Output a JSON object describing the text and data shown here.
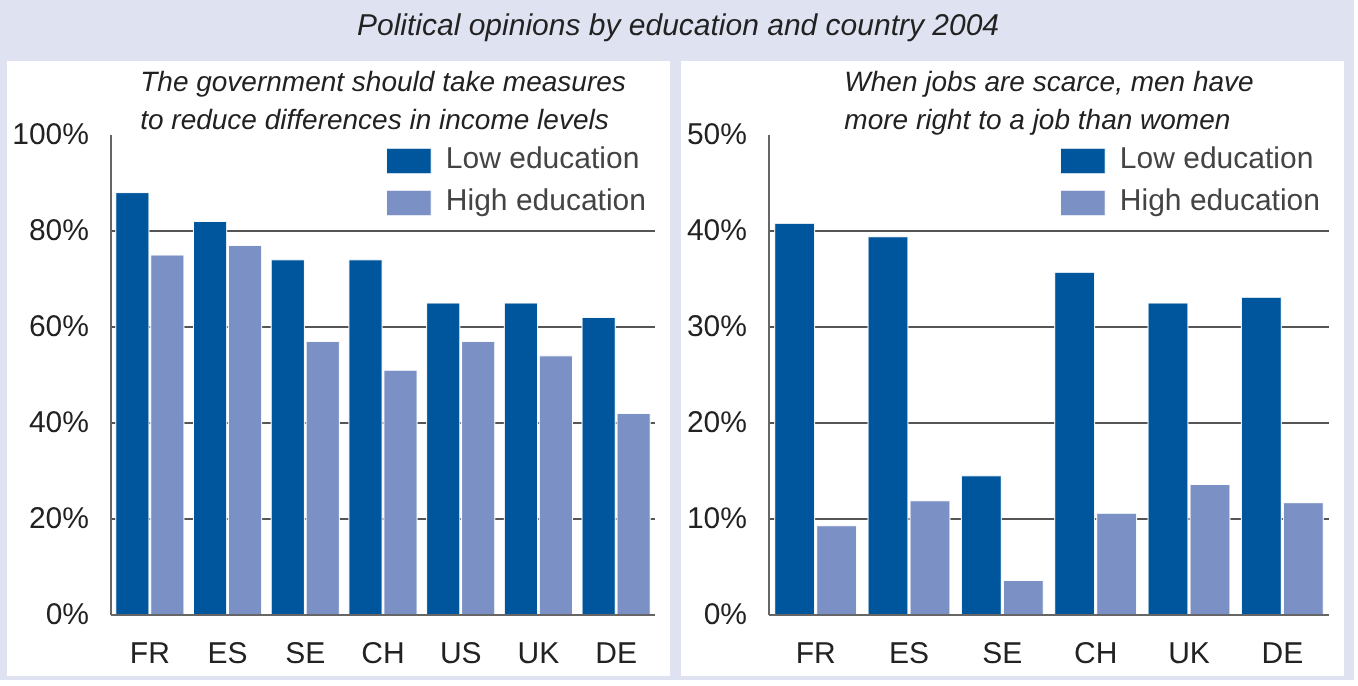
{
  "chart_data": [
    {
      "type": "other",
      "title": "Political opinions by education and country 2004"
    },
    {
      "type": "bar",
      "title": "The government should take measures to reduce differences in income levels",
      "categories": [
        "FR",
        "ES",
        "SE",
        "CH",
        "US",
        "UK",
        "DE"
      ],
      "series": [
        {
          "name": "Low education",
          "color": "#00569c",
          "values": [
            88,
            82,
            74,
            74,
            65,
            65,
            62
          ]
        },
        {
          "name": "High education",
          "color": "#7b90c4",
          "values": [
            75,
            77,
            57,
            51,
            57,
            54,
            42
          ]
        }
      ],
      "ylim": [
        0,
        100
      ],
      "yticks": [
        {
          "value": 0,
          "label": "0%"
        },
        {
          "value": 20,
          "label": "20%"
        },
        {
          "value": 40,
          "label": "40%"
        },
        {
          "value": 60,
          "label": "60%"
        },
        {
          "value": 80,
          "label": "80%"
        },
        {
          "value": 100,
          "label": "100%"
        }
      ],
      "grid": "y",
      "legend": "top right"
    },
    {
      "type": "bar",
      "title": "When jobs are scarce, men have more right to a job than women",
      "categories": [
        "FR",
        "ES",
        "SE",
        "CH",
        "UK",
        "DE"
      ],
      "series": [
        {
          "name": "Low education",
          "color": "#00569c",
          "values": [
            40.8,
            39.4,
            14.5,
            35.7,
            32.5,
            33.1
          ]
        },
        {
          "name": "High education",
          "color": "#7b90c4",
          "values": [
            9.3,
            11.9,
            3.6,
            10.6,
            13.6,
            11.7
          ]
        }
      ],
      "ylim": [
        0,
        50
      ],
      "yticks": [
        {
          "value": 0,
          "label": "0%"
        },
        {
          "value": 10,
          "label": "10%"
        },
        {
          "value": 20,
          "label": "20%"
        },
        {
          "value": 30,
          "label": "30%"
        },
        {
          "value": 40,
          "label": "40%"
        },
        {
          "value": 50,
          "label": "50%"
        }
      ],
      "grid": "y",
      "legend": "top right"
    }
  ]
}
